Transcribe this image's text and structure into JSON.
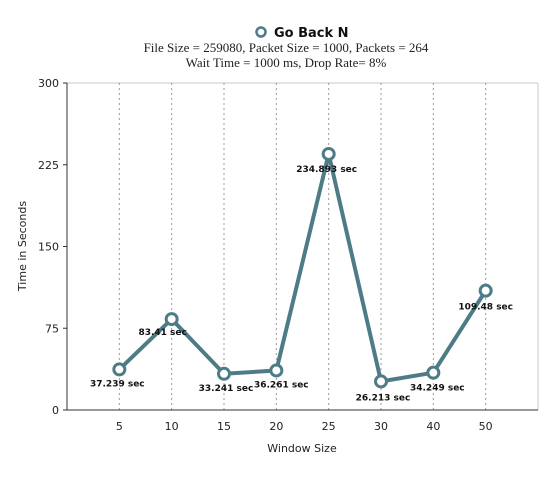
{
  "chart_data": {
    "type": "line",
    "legend": "Go Back N",
    "subtitle_lines": [
      "File Size = 259080,  Packet Size = 1000,  Packets = 264",
      "Wait Time = 1000 ms,  Drop Rate= 8%"
    ],
    "xlabel": "Window Size",
    "ylabel": "Time in Seconds",
    "categories": [
      "5",
      "10",
      "15",
      "20",
      "25",
      "30",
      "40",
      "50"
    ],
    "series": [
      {
        "name": "Go Back N",
        "values": [
          37.239,
          83.41,
          33.241,
          36.261,
          234.893,
          26.213,
          34.249,
          109.48
        ],
        "labels": [
          "37.239 sec",
          "83.41 sec",
          "33.241 sec",
          "36.261 sec",
          "234.893 sec",
          "26.213 sec",
          "34.249 sec",
          "109.48 sec"
        ]
      }
    ],
    "ylim": [
      0,
      300
    ],
    "yticks": [
      0,
      75,
      150,
      225,
      300
    ],
    "grid": "vertical-dotted",
    "colors": {
      "line": "#4d7c87",
      "marker_fill": "#ffffff"
    }
  }
}
